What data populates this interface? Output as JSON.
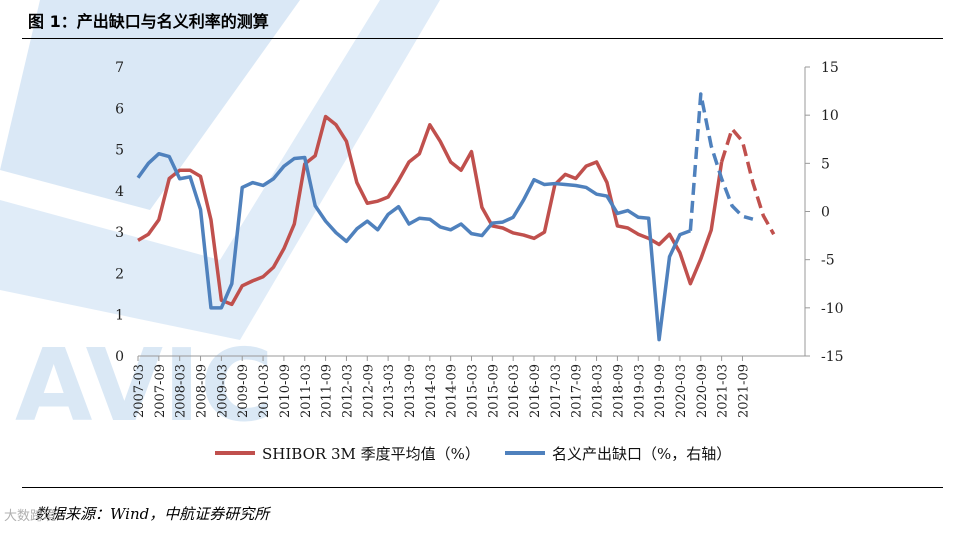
{
  "header": {
    "figure_title": "图 1：产出缺口与名义利率的测算"
  },
  "footer": {
    "source": "数据来源：Wind，中航证券研究所"
  },
  "watermark": {
    "logo_text": "AVIC",
    "corner_mark": "大数跨境"
  },
  "colors": {
    "red_series": "#c0504d",
    "blue_series": "#4f81bd",
    "watermark": "#d6e6f5",
    "axis": "#999999"
  },
  "chart_data": {
    "type": "line",
    "x_tick_labels": [
      "2007-03",
      "2007-09",
      "2008-03",
      "2008-09",
      "2009-03",
      "2009-09",
      "2010-03",
      "2010-09",
      "2011-03",
      "2011-09",
      "2012-03",
      "2012-09",
      "2013-03",
      "2013-09",
      "2014-03",
      "2014-09",
      "2015-03",
      "2015-09",
      "2016-03",
      "2016-09",
      "2017-03",
      "2017-09",
      "2018-03",
      "2018-09",
      "2019-03",
      "2019-09",
      "2020-03",
      "2020-09",
      "2021-03",
      "2021-09"
    ],
    "left_axis": {
      "ticks": [
        "0",
        "1",
        "2",
        "3",
        "4",
        "5",
        "6",
        "7"
      ],
      "ylim": [
        0,
        7
      ]
    },
    "right_axis": {
      "ticks": [
        "-15",
        "-10",
        "-5",
        "0",
        "5",
        "10",
        "15"
      ],
      "ylim": [
        -15,
        15
      ]
    },
    "series": [
      {
        "name": "SHIBOR 3M 季度平均值（%）",
        "axis": "left",
        "color": "#c0504d",
        "values": [
          2.8,
          2.95,
          3.3,
          4.3,
          4.5,
          4.5,
          4.35,
          3.3,
          1.35,
          1.25,
          1.7,
          1.82,
          1.92,
          2.15,
          2.6,
          3.2,
          4.65,
          4.85,
          5.8,
          5.6,
          5.2,
          4.2,
          3.7,
          3.75,
          3.85,
          4.25,
          4.7,
          4.9,
          5.6,
          5.2,
          4.7,
          4.5,
          4.95,
          3.6,
          3.15,
          3.1,
          2.98,
          2.93,
          2.85,
          3.0,
          4.15,
          4.4,
          4.3,
          4.6,
          4.7,
          4.2,
          3.15,
          3.1,
          2.95,
          2.85,
          2.7,
          2.95,
          2.5,
          1.75,
          2.35,
          3.05,
          4.7,
          5.5,
          5.2,
          4.2,
          3.4,
          2.95
        ],
        "projected_from_index": 56
      },
      {
        "name": "名义产出缺口（%，右轴）",
        "axis": "right",
        "color": "#4f81bd",
        "values": [
          3.5,
          5,
          6,
          5.7,
          3.4,
          3.6,
          0.2,
          -10,
          -10,
          -7.5,
          2.5,
          3,
          2.7,
          3.4,
          4.7,
          5.5,
          5.6,
          0.6,
          -1,
          -2.2,
          -3.1,
          -1.8,
          -1,
          -1.9,
          -0.3,
          0.5,
          -1.3,
          -0.7,
          -0.8,
          -1.6,
          -1.9,
          -1.3,
          -2.3,
          -2.5,
          -1.2,
          -1.1,
          -0.6,
          1.2,
          3.3,
          2.8,
          2.9,
          2.8,
          2.7,
          2.5,
          1.8,
          1.6,
          -0.2,
          0.1,
          -0.6,
          -0.7,
          -13.3,
          -4.7,
          -2.4,
          -2,
          12.2,
          6.8,
          3.4,
          0.6,
          -0.5,
          -0.8
        ],
        "projected_from_index": 53
      }
    ],
    "xlabel": "",
    "ylabel": "",
    "grid": false,
    "legend_placement": "bottom"
  }
}
